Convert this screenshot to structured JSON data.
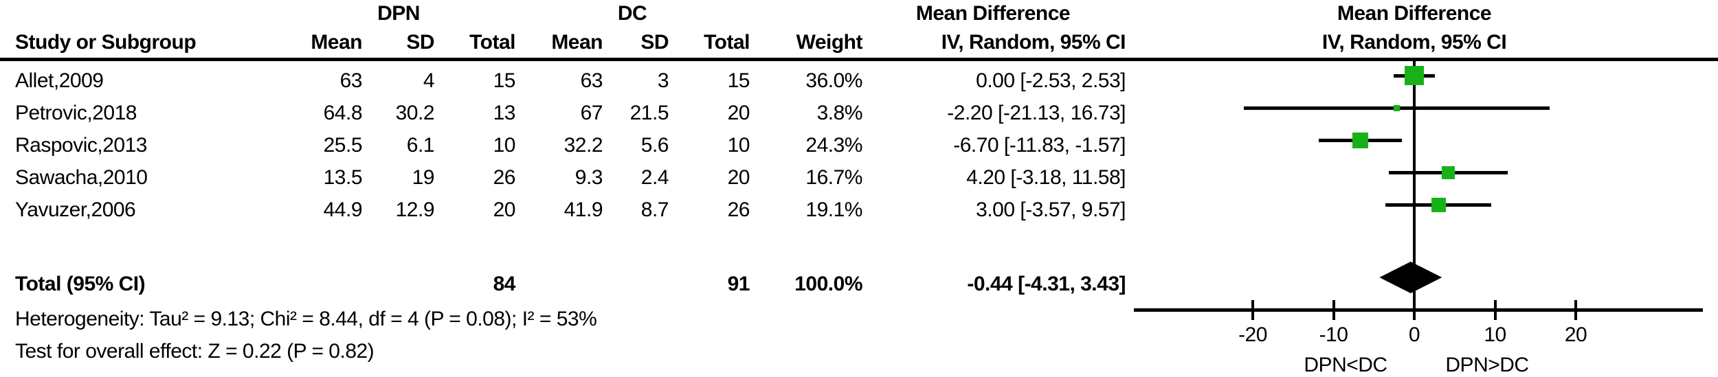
{
  "colors": {
    "marker_green": "#17B217",
    "ink": "#000000",
    "background": "#ffffff"
  },
  "table": {
    "group1_label": "DPN",
    "group2_label": "DC",
    "col_study": "Study or Subgroup",
    "col_mean": "Mean",
    "col_sd": "SD",
    "col_total": "Total",
    "col_weight": "Weight",
    "md_header_line1": "Mean Difference",
    "md_header_line2": "IV, Random, 95% CI"
  },
  "plot": {
    "header_line1": "Mean Difference",
    "header_line2": "IV, Random, 95% CI",
    "favours_left": "DPN<DC",
    "favours_right": "DPN>DC"
  },
  "studies": [
    {
      "name": "Allet,2009",
      "dpn_mean": "63",
      "dpn_sd": "4",
      "dpn_total": "15",
      "dc_mean": "63",
      "dc_sd": "3",
      "dc_total": "15",
      "weight": "36.0%",
      "ci_text": "0.00 [-2.53, 2.53]"
    },
    {
      "name": "Petrovic,2018",
      "dpn_mean": "64.8",
      "dpn_sd": "30.2",
      "dpn_total": "13",
      "dc_mean": "67",
      "dc_sd": "21.5",
      "dc_total": "20",
      "weight": "3.8%",
      "ci_text": "-2.20 [-21.13, 16.73]"
    },
    {
      "name": "Raspovic,2013",
      "dpn_mean": "25.5",
      "dpn_sd": "6.1",
      "dpn_total": "10",
      "dc_mean": "32.2",
      "dc_sd": "5.6",
      "dc_total": "10",
      "weight": "24.3%",
      "ci_text": "-6.70 [-11.83, -1.57]"
    },
    {
      "name": "Sawacha,2010",
      "dpn_mean": "13.5",
      "dpn_sd": "19",
      "dpn_total": "26",
      "dc_mean": "9.3",
      "dc_sd": "2.4",
      "dc_total": "20",
      "weight": "16.7%",
      "ci_text": "4.20 [-3.18, 11.58]"
    },
    {
      "name": "Yavuzer,2006",
      "dpn_mean": "44.9",
      "dpn_sd": "12.9",
      "dpn_total": "20",
      "dc_mean": "41.9",
      "dc_sd": "8.7",
      "dc_total": "26",
      "weight": "19.1%",
      "ci_text": "3.00 [-3.57, 9.57]"
    }
  ],
  "total": {
    "label": "Total (95% CI)",
    "dpn_total": "84",
    "dc_total": "91",
    "weight": "100.0%",
    "ci_text": "-0.44 [-4.31, 3.43]"
  },
  "footnotes": {
    "heterogeneity": "Heterogeneity: Tau² = 9.13; Chi² = 8.44, df = 4 (P = 0.08); I² = 53%",
    "overall_effect": "Test for overall effect: Z = 0.22 (P = 0.82)"
  },
  "chart_data": {
    "type": "scatter",
    "subtype": "forest_plot_mean_difference",
    "title": "Mean Difference IV, Random, 95% CI",
    "effect_measure": "Mean Difference (IV, Random, 95% CI)",
    "x_ticks": [
      -20,
      -10,
      0,
      10,
      20
    ],
    "xlim": [
      -35,
      35
    ],
    "xlabel_left": "DPN<DC",
    "xlabel_right": "DPN>DC",
    "grid": false,
    "studies": [
      {
        "study": "Allet,2009",
        "md": 0.0,
        "ci_low": -2.53,
        "ci_high": 2.53,
        "weight_pct": 36.0
      },
      {
        "study": "Petrovic,2018",
        "md": -2.2,
        "ci_low": -21.13,
        "ci_high": 16.73,
        "weight_pct": 3.8
      },
      {
        "study": "Raspovic,2013",
        "md": -6.7,
        "ci_low": -11.83,
        "ci_high": -1.57,
        "weight_pct": 24.3
      },
      {
        "study": "Sawacha,2010",
        "md": 4.2,
        "ci_low": -3.18,
        "ci_high": 11.58,
        "weight_pct": 16.7
      },
      {
        "study": "Yavuzer,2006",
        "md": 3.0,
        "ci_low": -3.57,
        "ci_high": 9.57,
        "weight_pct": 19.1
      }
    ],
    "total": {
      "label": "Total (95% CI)",
      "md": -0.44,
      "ci_low": -4.31,
      "ci_high": 3.43,
      "weight_pct": 100.0
    },
    "heterogeneity": {
      "tau2": 9.13,
      "chi2": 8.44,
      "df": 4,
      "p": 0.08,
      "i2_pct": 53
    },
    "overall_effect": {
      "z": 0.22,
      "p": 0.82
    }
  }
}
